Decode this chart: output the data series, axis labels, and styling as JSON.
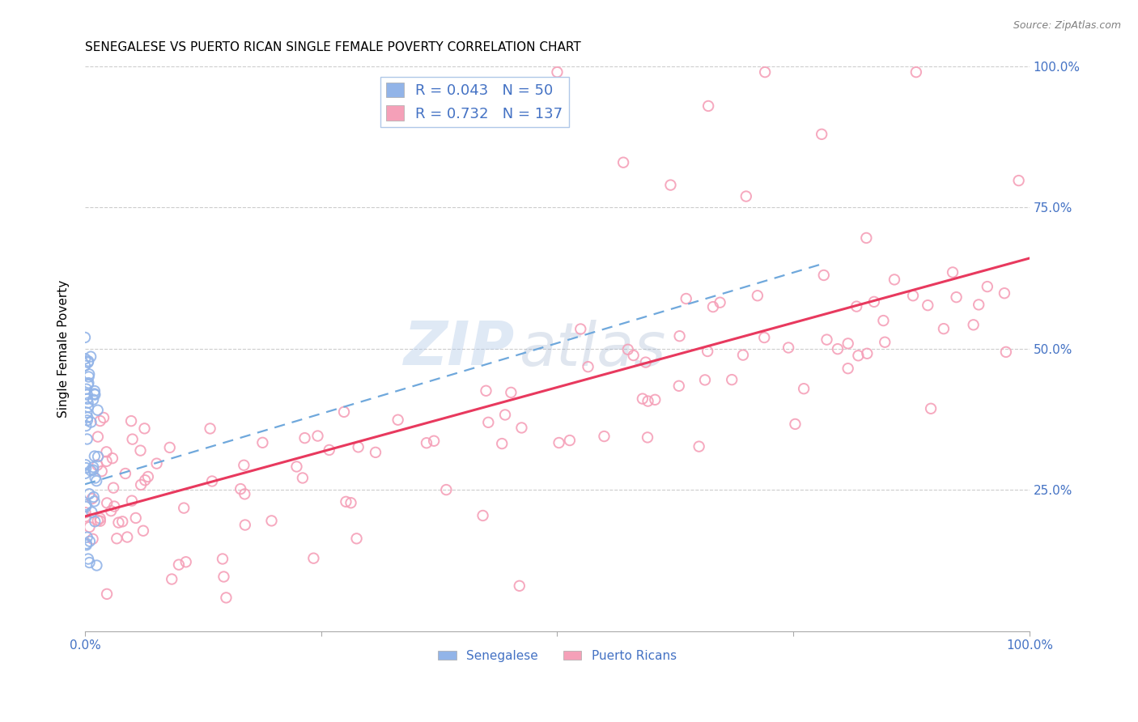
{
  "title": "SENEGALESE VS PUERTO RICAN SINGLE FEMALE POVERTY CORRELATION CHART",
  "source": "Source: ZipAtlas.com",
  "ylabel": "Single Female Poverty",
  "senegalese_R": 0.043,
  "senegalese_N": 50,
  "puerto_rican_R": 0.732,
  "puerto_rican_N": 137,
  "watermark_zip": "ZIP",
  "watermark_atlas": "atlas",
  "senegalese_color": "#92b4e8",
  "puerto_rican_color": "#f5a0b8",
  "senegalese_line_color": "#6fa8dc",
  "puerto_rican_line_color": "#e8395e",
  "legend_label_1": "Senegalese",
  "legend_label_2": "Puerto Ricans",
  "title_fontsize": 11,
  "axis_label_color": "#4472c4",
  "background_color": "#ffffff",
  "grid_color": "#cccccc",
  "xlim": [
    0,
    1
  ],
  "ylim": [
    0,
    1
  ],
  "ytick_positions": [
    0.25,
    0.5,
    0.75,
    1.0
  ],
  "ytick_labels": [
    "25.0%",
    "50.0%",
    "75.0%",
    "100.0%"
  ]
}
